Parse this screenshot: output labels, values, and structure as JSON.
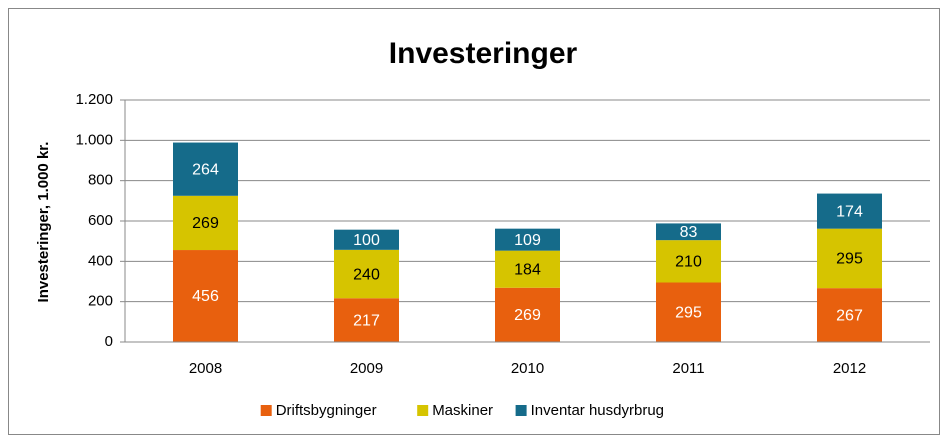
{
  "chart_data": {
    "type": "stacked_bar",
    "title": "Investeringer",
    "y_label": "Investeringer, 1.000 kr.",
    "categories": [
      "2008",
      "2009",
      "2010",
      "2011",
      "2012"
    ],
    "series": [
      {
        "name": "Driftsbygninger",
        "color": "#e8600e",
        "label_color": "#ffffff",
        "values": [
          456,
          217,
          269,
          295,
          267
        ]
      },
      {
        "name": "Maskiner",
        "color": "#d6c400",
        "label_color": "#000000",
        "values": [
          269,
          240,
          184,
          210,
          295
        ]
      },
      {
        "name": "Inventar husdyrbrug",
        "color": "#156b8a",
        "label_color": "#ffffff",
        "values": [
          264,
          100,
          109,
          83,
          174
        ]
      }
    ],
    "ylim": [
      0,
      1200
    ],
    "yticks": [
      0,
      200,
      400,
      600,
      800,
      {
        "value": 1000,
        "label": "1.000"
      },
      {
        "value": 1200,
        "label": "1.200"
      }
    ],
    "grid": true,
    "legend": "bottom"
  }
}
